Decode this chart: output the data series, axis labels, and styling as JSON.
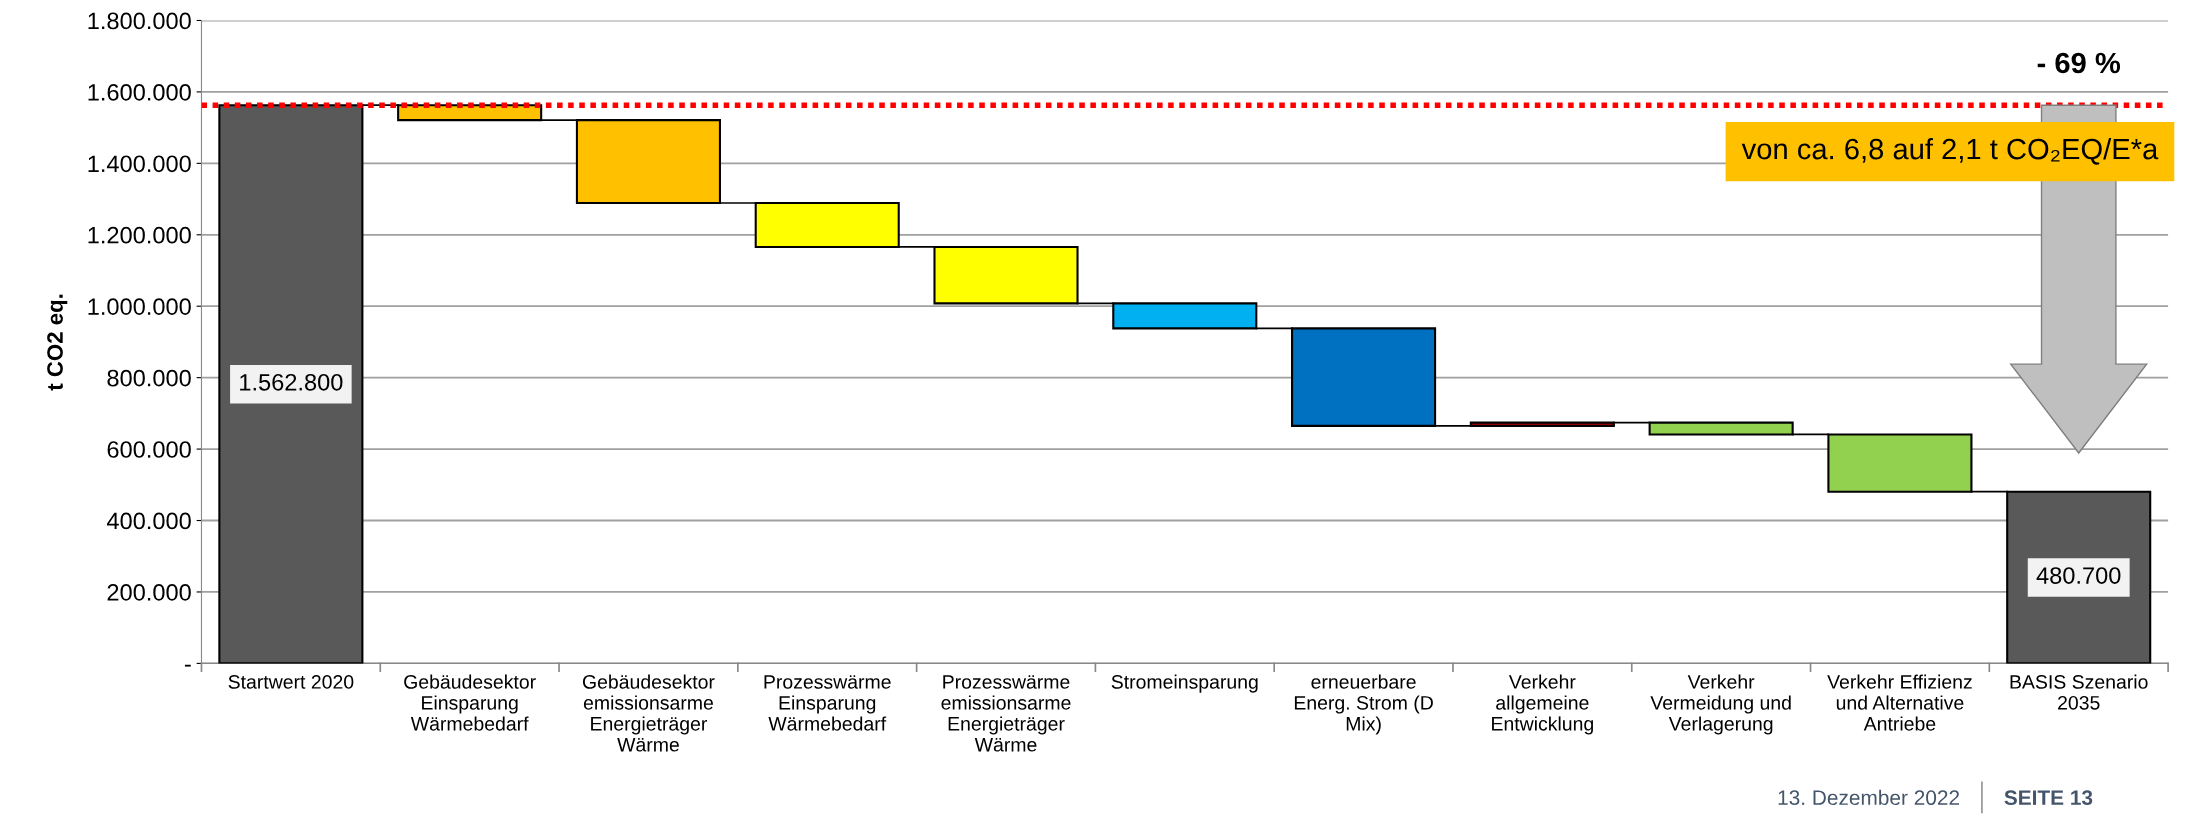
{
  "chart_data": {
    "type": "bar",
    "ylabel": "t CO2 eq.",
    "categories": [
      "Startwert 2020",
      "Gebäudesektor Einsparung Wärmebedarf",
      "Gebäudesektor emissionsarme Energieträger Wärme",
      "Prozesswärme Einsparung Wärmebedarf",
      "Prozesswärme emissionsarme Energieträger Wärme",
      "Stromeinsparung",
      "erneuerbare Energ. Strom (D Mix)",
      "Verkehr allgemeine Entwicklung",
      "Verkehr Vermeidung und Verlagerung",
      "Verkehr Effizienz und Alternative Antriebe",
      "BASIS Szenario 2035"
    ],
    "base": [
      0,
      1562800,
      1521000,
      1289000,
      1166000,
      1008000,
      938000,
      665000,
      674000,
      641000,
      0
    ],
    "values": [
      1562800,
      -41800,
      -232000,
      -123000,
      -158000,
      -70000,
      -273000,
      9000,
      -33000,
      -160300,
      480700
    ],
    "colors": [
      "#595959",
      "#ffc000",
      "#ffc000",
      "#ffff00",
      "#ffff00",
      "#00b0f0",
      "#0070c0",
      "#c00000",
      "#92d050",
      "#92d050",
      "#595959"
    ],
    "value_labels": [
      "1.562.800",
      null,
      null,
      null,
      null,
      null,
      null,
      null,
      null,
      null,
      "480.700"
    ],
    "ylim": [
      0,
      1800000
    ],
    "yticks": [
      {
        "value": 0,
        "label": "-"
      },
      {
        "value": 200000,
        "label": "200.000"
      },
      {
        "value": 400000,
        "label": "400.000"
      },
      {
        "value": 600000,
        "label": "600.000"
      },
      {
        "value": 800000,
        "label": "800.000"
      },
      {
        "value": 1000000,
        "label": "1.000.000"
      },
      {
        "value": 1200000,
        "label": "1.200.000"
      },
      {
        "value": 1400000,
        "label": "1.400.000"
      },
      {
        "value": 1600000,
        "label": "1.600.000"
      },
      {
        "value": 1800000,
        "label": "1.800.000"
      }
    ],
    "grid": "y",
    "ref_lines": [
      {
        "axis": "y",
        "value": 1562800,
        "color": "#ff0000",
        "line_style": "dotted"
      }
    ],
    "annotations": [
      "- 69 %",
      "von ca. 6,8 auf 2,1 t CO₂EQ/E*a",
      "13. Dezember 2022",
      "SEITE 13"
    ]
  }
}
